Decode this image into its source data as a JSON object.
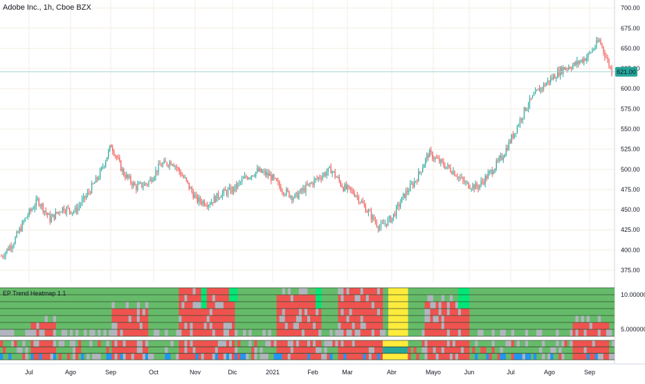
{
  "header": {
    "title": "Adobe Inc., 1h, Cboe BZX"
  },
  "price_badge": {
    "value": "621.00",
    "color": "#26a69a"
  },
  "chart_data": [
    {
      "type": "line",
      "title": "Adobe Inc., 1h, Cboe BZX",
      "ylim": [
        360,
        710
      ],
      "y_ticks": [
        "700.00",
        "675.00",
        "650.00",
        "625.00",
        "600.00",
        "575.00",
        "550.00",
        "525.00",
        "500.00",
        "475.00",
        "450.00",
        "425.00",
        "400.00",
        "375.00"
      ],
      "y_tick_values": [
        700,
        675,
        650,
        625,
        600,
        575,
        550,
        525,
        500,
        475,
        450,
        425,
        400,
        375
      ],
      "last_price": 621,
      "x_ticks": [
        "Jul",
        "Ago",
        "Sep",
        "Oct",
        "Nov",
        "Dic",
        "2021",
        "Feb",
        "Mar",
        "Abr",
        "Mayo",
        "Jun",
        "Jul",
        "Ago",
        "Sep"
      ],
      "series": [
        {
          "x": [
            0,
            0.02,
            0.04,
            0.06,
            0.08,
            0.1,
            0.12,
            0.14,
            0.16,
            0.18,
            0.2,
            0.22,
            0.24,
            0.26,
            0.28,
            0.3,
            0.32,
            0.34,
            0.36,
            0.38,
            0.4,
            0.42,
            0.44,
            0.46,
            0.48,
            0.5,
            0.52,
            0.54,
            0.56,
            0.58,
            0.6,
            0.62,
            0.64,
            0.66,
            0.68,
            0.7,
            0.72,
            0.74,
            0.76,
            0.78,
            0.8,
            0.82,
            0.84,
            0.86,
            0.88,
            0.9,
            0.92,
            0.94,
            0.96,
            0.98,
            1.0
          ],
          "y": [
            392,
            410,
            440,
            462,
            438,
            452,
            448,
            468,
            492,
            530,
            495,
            478,
            483,
            505,
            510,
            488,
            462,
            458,
            470,
            475,
            490,
            498,
            492,
            475,
            465,
            478,
            490,
            500,
            478,
            470,
            448,
            428,
            440,
            468,
            488,
            520,
            508,
            498,
            482,
            478,
            495,
            515,
            545,
            578,
            598,
            612,
            625,
            630,
            640,
            660,
            621
          ]
        }
      ]
    },
    {
      "type": "heatmap",
      "title": "EP Trend Heatmap 1.1",
      "y_ticks": [
        "10.000000",
        "5.000000"
      ],
      "y_tick_values": [
        10,
        5
      ],
      "colors": {
        "bullish": "#66bb6a",
        "strong_bullish": "#00e676",
        "bearish": "#ef5350",
        "neutral": "#b2b5be",
        "transition": "#ffeb3b",
        "teal": "#26a69a",
        "blue": "#2196f3"
      }
    }
  ]
}
